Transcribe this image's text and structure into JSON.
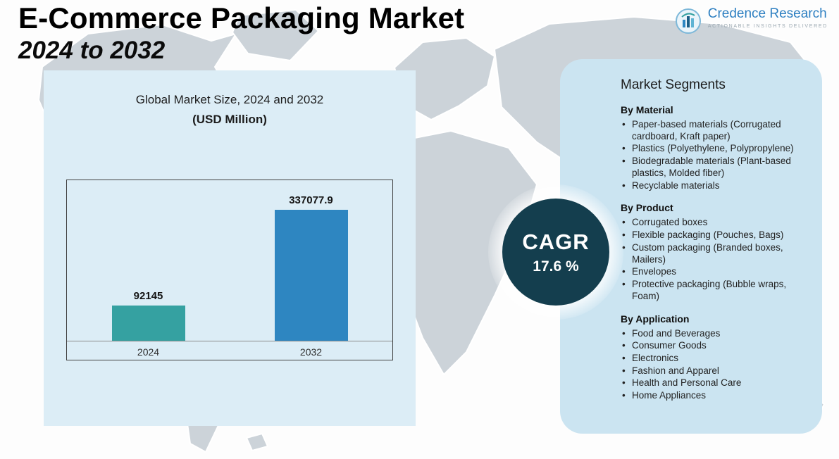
{
  "header": {
    "title": "E-Commerce Packaging Market",
    "subtitle": "2024 to 2032"
  },
  "logo": {
    "name": "Credence Research",
    "tagline": "Actionable Insights Delivered"
  },
  "chart": {
    "title_line1": "Global Market Size, 2024 and 2032",
    "title_line2": "(USD Million)"
  },
  "chart_data": {
    "type": "bar",
    "title": "Global Market Size, 2024 and 2032 (USD Million)",
    "categories": [
      "2024",
      "2032"
    ],
    "values": [
      92145,
      337077.9
    ],
    "xlabel": "",
    "ylabel": "USD Million",
    "ylim": [
      0,
      360000
    ],
    "grid": false,
    "legend": false,
    "colors": [
      "#35a1a1",
      "#2e86c1"
    ]
  },
  "cagr": {
    "label": "CAGR",
    "value": "17.6 %"
  },
  "segments": {
    "title": "Market Segments",
    "groups": [
      {
        "heading": "By Material",
        "items": [
          "Paper-based materials (Corrugated cardboard, Kraft paper)",
          "Plastics (Polyethylene, Polypropylene)",
          "Biodegradable materials (Plant-based plastics, Molded fiber)",
          "Recyclable materials"
        ]
      },
      {
        "heading": "By Product",
        "items": [
          "Corrugated boxes",
          "Flexible packaging (Pouches, Bags)",
          "Custom packaging (Branded boxes, Mailers)",
          "Envelopes",
          "Protective packaging (Bubble wraps, Foam)"
        ]
      },
      {
        "heading": "By Application",
        "items": [
          "Food and Beverages",
          "Consumer Goods",
          "Electronics",
          "Fashion and Apparel",
          "Health and Personal Care",
          "Home Appliances"
        ]
      }
    ]
  },
  "ui": {
    "bullet": "•"
  }
}
